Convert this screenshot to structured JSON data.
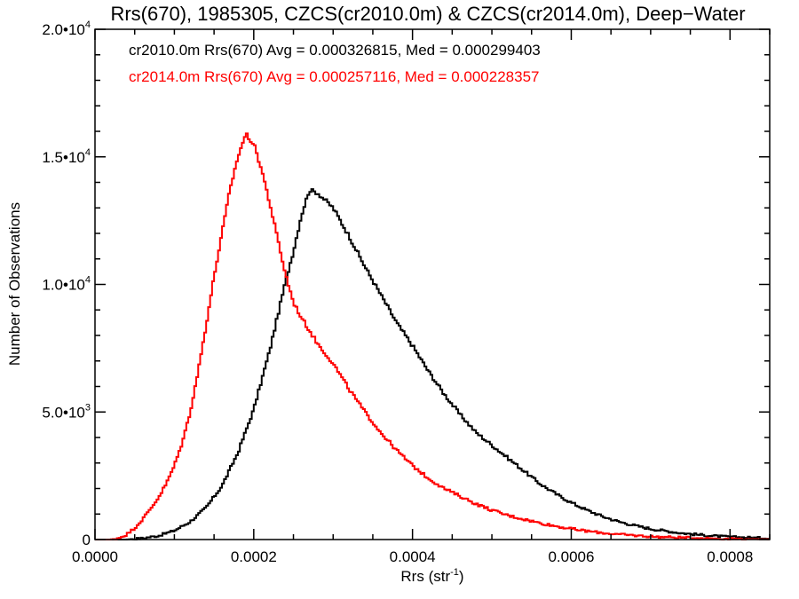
{
  "chart_data": {
    "type": "line",
    "title": "Rrs(670), 1985305, CZCS(cr2010.0m) & CZCS(cr2014.0m), Deep−Water",
    "xlabel": "Rrs (str",
    "xlabel_sup": "-1",
    "xlabel_end": ")",
    "ylabel": "Number of Observations",
    "xlim": [
      0.0,
      0.00085
    ],
    "ylim": [
      0,
      20000
    ],
    "x_ticks": [
      {
        "value": 0.0,
        "label": "0.0000"
      },
      {
        "value": 0.0002,
        "label": "0.0002"
      },
      {
        "value": 0.0004,
        "label": "0.0004"
      },
      {
        "value": 0.0006,
        "label": "0.0006"
      },
      {
        "value": 0.0008,
        "label": "0.0008"
      }
    ],
    "y_ticks": [
      {
        "value": 0,
        "label": "0",
        "sup": ""
      },
      {
        "value": 5000,
        "label": "5.0•10",
        "sup": "3"
      },
      {
        "value": 10000,
        "label": "1.0•10",
        "sup": "4"
      },
      {
        "value": 15000,
        "label": "1.5•10",
        "sup": "4"
      },
      {
        "value": 20000,
        "label": "2.0•10",
        "sup": "4"
      }
    ],
    "grid": false,
    "legend_position": "top-left",
    "series": [
      {
        "name": "cr2010.0m Rrs(670) Avg = 0.000326815, Med = 0.000299403",
        "color": "#000000",
        "peak_x": 0.000268,
        "peak_y": 13800,
        "points": [
          [
            4e-05,
            0
          ],
          [
            6e-05,
            50
          ],
          [
            8e-05,
            150
          ],
          [
            0.0001,
            350
          ],
          [
            0.00012,
            700
          ],
          [
            0.00014,
            1250
          ],
          [
            0.00016,
            2100
          ],
          [
            0.00018,
            3400
          ],
          [
            0.0002,
            5100
          ],
          [
            0.00022,
            7400
          ],
          [
            0.00024,
            10100
          ],
          [
            0.00025,
            11300
          ],
          [
            0.00026,
            12700
          ],
          [
            0.00027,
            13700
          ],
          [
            0.00028,
            13600
          ],
          [
            0.0003,
            13000
          ],
          [
            0.00032,
            11900
          ],
          [
            0.00034,
            10700
          ],
          [
            0.00036,
            9600
          ],
          [
            0.00038,
            8500
          ],
          [
            0.0004,
            7600
          ],
          [
            0.00042,
            6600
          ],
          [
            0.00044,
            5700
          ],
          [
            0.00046,
            4900
          ],
          [
            0.00048,
            4200
          ],
          [
            0.0005,
            3700
          ],
          [
            0.00052,
            3200
          ],
          [
            0.00054,
            2700
          ],
          [
            0.00056,
            2200
          ],
          [
            0.00058,
            1800
          ],
          [
            0.0006,
            1450
          ],
          [
            0.00062,
            1150
          ],
          [
            0.00064,
            900
          ],
          [
            0.00066,
            700
          ],
          [
            0.00068,
            550
          ],
          [
            0.0007,
            420
          ],
          [
            0.00072,
            330
          ],
          [
            0.00074,
            250
          ],
          [
            0.00076,
            190
          ],
          [
            0.00078,
            140
          ],
          [
            0.0008,
            100
          ],
          [
            0.00082,
            80
          ],
          [
            0.00085,
            55
          ]
        ]
      },
      {
        "name": "cr2014.0m Rrs(670) Avg = 0.000257116, Med = 0.000228357",
        "color": "#ff0000",
        "peak_x": 0.000195,
        "peak_y": 16000,
        "points": [
          [
            2e-05,
            0
          ],
          [
            3e-05,
            60
          ],
          [
            4e-05,
            200
          ],
          [
            5e-05,
            450
          ],
          [
            6e-05,
            800
          ],
          [
            7e-05,
            1200
          ],
          [
            8e-05,
            1650
          ],
          [
            9e-05,
            2200
          ],
          [
            0.0001,
            2900
          ],
          [
            0.00011,
            3800
          ],
          [
            0.00012,
            5000
          ],
          [
            0.00013,
            6600
          ],
          [
            0.00014,
            8400
          ],
          [
            0.00015,
            10300
          ],
          [
            0.00016,
            12000
          ],
          [
            0.00017,
            13700
          ],
          [
            0.00018,
            15000
          ],
          [
            0.00019,
            15900
          ],
          [
            0.0002,
            15500
          ],
          [
            0.00021,
            14500
          ],
          [
            0.00022,
            13200
          ],
          [
            0.00023,
            11800
          ],
          [
            0.00024,
            10400
          ],
          [
            0.00025,
            9300
          ],
          [
            0.00026,
            8700
          ],
          [
            0.00027,
            8200
          ],
          [
            0.00028,
            7700
          ],
          [
            0.0003,
            6900
          ],
          [
            0.00032,
            5900
          ],
          [
            0.00034,
            5000
          ],
          [
            0.00036,
            4200
          ],
          [
            0.00038,
            3500
          ],
          [
            0.0004,
            2900
          ],
          [
            0.00042,
            2400
          ],
          [
            0.00044,
            2000
          ],
          [
            0.00046,
            1700
          ],
          [
            0.00048,
            1400
          ],
          [
            0.0005,
            1150
          ],
          [
            0.00052,
            950
          ],
          [
            0.00054,
            800
          ],
          [
            0.00056,
            650
          ],
          [
            0.00058,
            530
          ],
          [
            0.0006,
            420
          ],
          [
            0.00062,
            330
          ],
          [
            0.00064,
            260
          ],
          [
            0.00066,
            200
          ],
          [
            0.00068,
            160
          ],
          [
            0.0007,
            120
          ],
          [
            0.00072,
            95
          ],
          [
            0.00074,
            75
          ],
          [
            0.00076,
            55
          ],
          [
            0.00078,
            40
          ],
          [
            0.0008,
            30
          ],
          [
            0.00082,
            20
          ],
          [
            0.00085,
            10
          ]
        ]
      }
    ]
  }
}
